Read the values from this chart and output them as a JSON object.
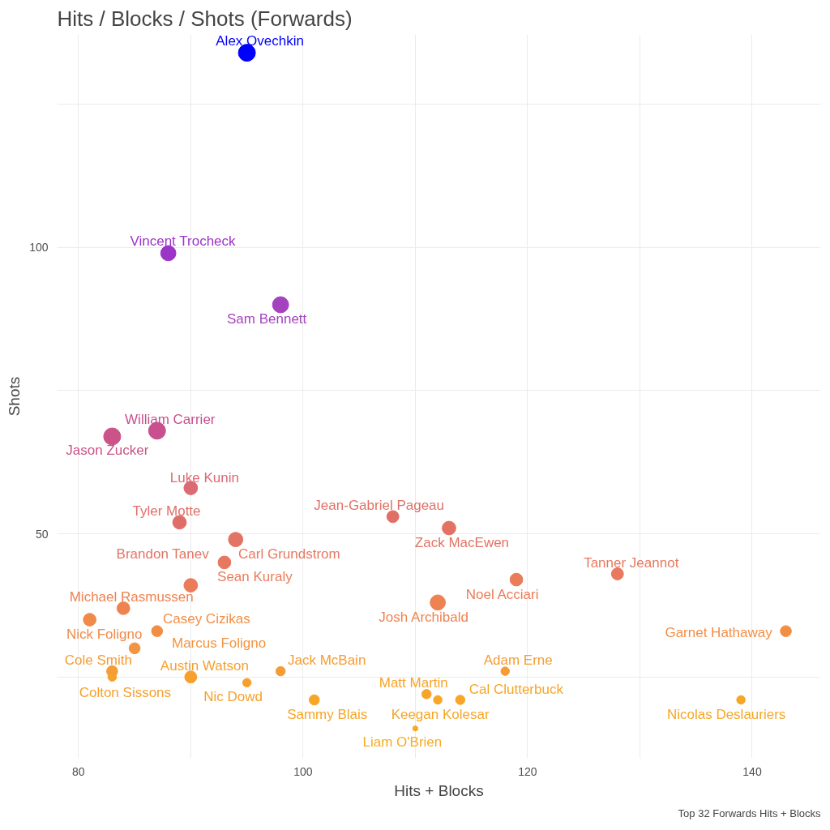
{
  "chart_data": {
    "type": "bubble",
    "title": "Hits / Blocks / Shots (Forwards)",
    "xlabel": "Hits + Blocks",
    "ylabel": "Shots",
    "x": [
      95,
      88,
      98,
      87,
      83,
      90,
      89,
      108,
      113,
      94,
      93,
      90,
      128,
      119,
      84,
      112,
      81,
      87,
      143,
      85,
      83,
      83,
      90,
      98,
      118,
      95,
      111,
      112,
      114,
      101,
      139,
      110
    ],
    "values": [
      134,
      99,
      90,
      68,
      67,
      58,
      52,
      53,
      51,
      49,
      45,
      41,
      43,
      42,
      37,
      38,
      35,
      33,
      33,
      30,
      26,
      25,
      25,
      26,
      26,
      24,
      22,
      21,
      21,
      21,
      21,
      16
    ],
    "sizes": [
      1,
      0.8,
      0.9,
      1,
      1,
      0.64,
      0.64,
      0.5,
      0.64,
      0.72,
      0.56,
      0.64,
      0.5,
      0.56,
      0.56,
      0.8,
      0.56,
      0.42,
      0.42,
      0.42,
      0.42,
      0.25,
      0.5,
      0.3,
      0.25,
      0.25,
      0.3,
      0.25,
      0.3,
      0.36,
      0.25,
      0.09
    ],
    "colors": [
      "#0000ff",
      "#9b35c8",
      "#a543bf",
      "#c8508e",
      "#cb5388",
      "#dc6a72",
      "#e06e68",
      "#e07066",
      "#e27264",
      "#e37464",
      "#e77860",
      "#ea7c5a",
      "#e9785e",
      "#eb7c58",
      "#ef8250",
      "#ee8252",
      "#f18a48",
      "#f28e44",
      "#f28e44",
      "#f39440",
      "#f59c34",
      "#f6a02e",
      "#f6a02e",
      "#f59c34",
      "#f59c34",
      "#f6a02c",
      "#f7a428",
      "#f7a626",
      "#f7a626",
      "#f7a626",
      "#f7a626",
      "#f8ab20"
    ],
    "marker": "circle",
    "grid": true,
    "xlim": [
      78.1,
      146.1
    ],
    "xticks": [
      80,
      {
        "value": 90,
        "label": null
      },
      100,
      {
        "value": 110,
        "label": null
      },
      120,
      {
        "value": 130,
        "label": null
      },
      140
    ],
    "ylim": [
      10.8,
      137.2
    ],
    "yticks": [
      {
        "value": 25,
        "label": null
      },
      50,
      {
        "value": 75,
        "label": null
      },
      100,
      {
        "value": 125,
        "label": null
      }
    ],
    "annotations": [
      {
        "text": "Alex Ovechkin",
        "x": 95,
        "y": 134
      },
      {
        "text": "Vincent Trocheck",
        "x": 88,
        "y": 99
      },
      {
        "text": "Sam Bennett",
        "x": 98,
        "y": 90
      },
      {
        "text": "William Carrier",
        "x": 87,
        "y": 68
      },
      {
        "text": "Jason Zucker",
        "x": 83,
        "y": 67
      },
      {
        "text": "Luke Kunin",
        "x": 90,
        "y": 58
      },
      {
        "text": "Tyler Motte",
        "x": 89,
        "y": 52
      },
      {
        "text": "Jean-Gabriel Pageau",
        "x": 108,
        "y": 53
      },
      {
        "text": "Zack MacEwen",
        "x": 113,
        "y": 51
      },
      {
        "text": "Brandon Tanev",
        "x": 94,
        "y": 49
      },
      {
        "text": "Carl Grundstrom",
        "x": 93,
        "y": 45
      },
      {
        "text": "Sean Kuraly",
        "x": 90,
        "y": 41
      },
      {
        "text": "Tanner Jeannot",
        "x": 128,
        "y": 43
      },
      {
        "text": "Noel Acciari",
        "x": 119,
        "y": 42
      },
      {
        "text": "Michael Rasmussen",
        "x": 84,
        "y": 37
      },
      {
        "text": "Josh Archibald",
        "x": 112,
        "y": 38
      },
      {
        "text": "Nick Foligno",
        "x": 81,
        "y": 35
      },
      {
        "text": "Casey Cizikas",
        "x": 87,
        "y": 33
      },
      {
        "text": "Garnet Hathaway",
        "x": 143,
        "y": 33
      },
      {
        "text": "Marcus Foligno",
        "x": 85,
        "y": 30
      },
      {
        "text": "Cole Smith",
        "x": 83,
        "y": 26
      },
      {
        "text": "Colton Sissons",
        "x": 83,
        "y": 25
      },
      {
        "text": "Austin Watson",
        "x": 90,
        "y": 25
      },
      {
        "text": "Jack McBain",
        "x": 98,
        "y": 26
      },
      {
        "text": "Adam Erne",
        "x": 118,
        "y": 26
      },
      {
        "text": "Nic Dowd",
        "x": 95,
        "y": 24
      },
      {
        "text": "Matt Martin",
        "x": 111,
        "y": 22
      },
      {
        "text": "Keegan Kolesar",
        "x": 112,
        "y": 21
      },
      {
        "text": "Cal Clutterbuck",
        "x": 114,
        "y": 21
      },
      {
        "text": "Sammy Blais",
        "x": 101,
        "y": 21
      },
      {
        "text": "Nicolas Deslauriers",
        "x": 139,
        "y": 21
      },
      {
        "text": "Liam O'Brien",
        "x": 110,
        "y": 16
      },
      "Top 32 Forwards Hits + Blocks"
    ]
  }
}
